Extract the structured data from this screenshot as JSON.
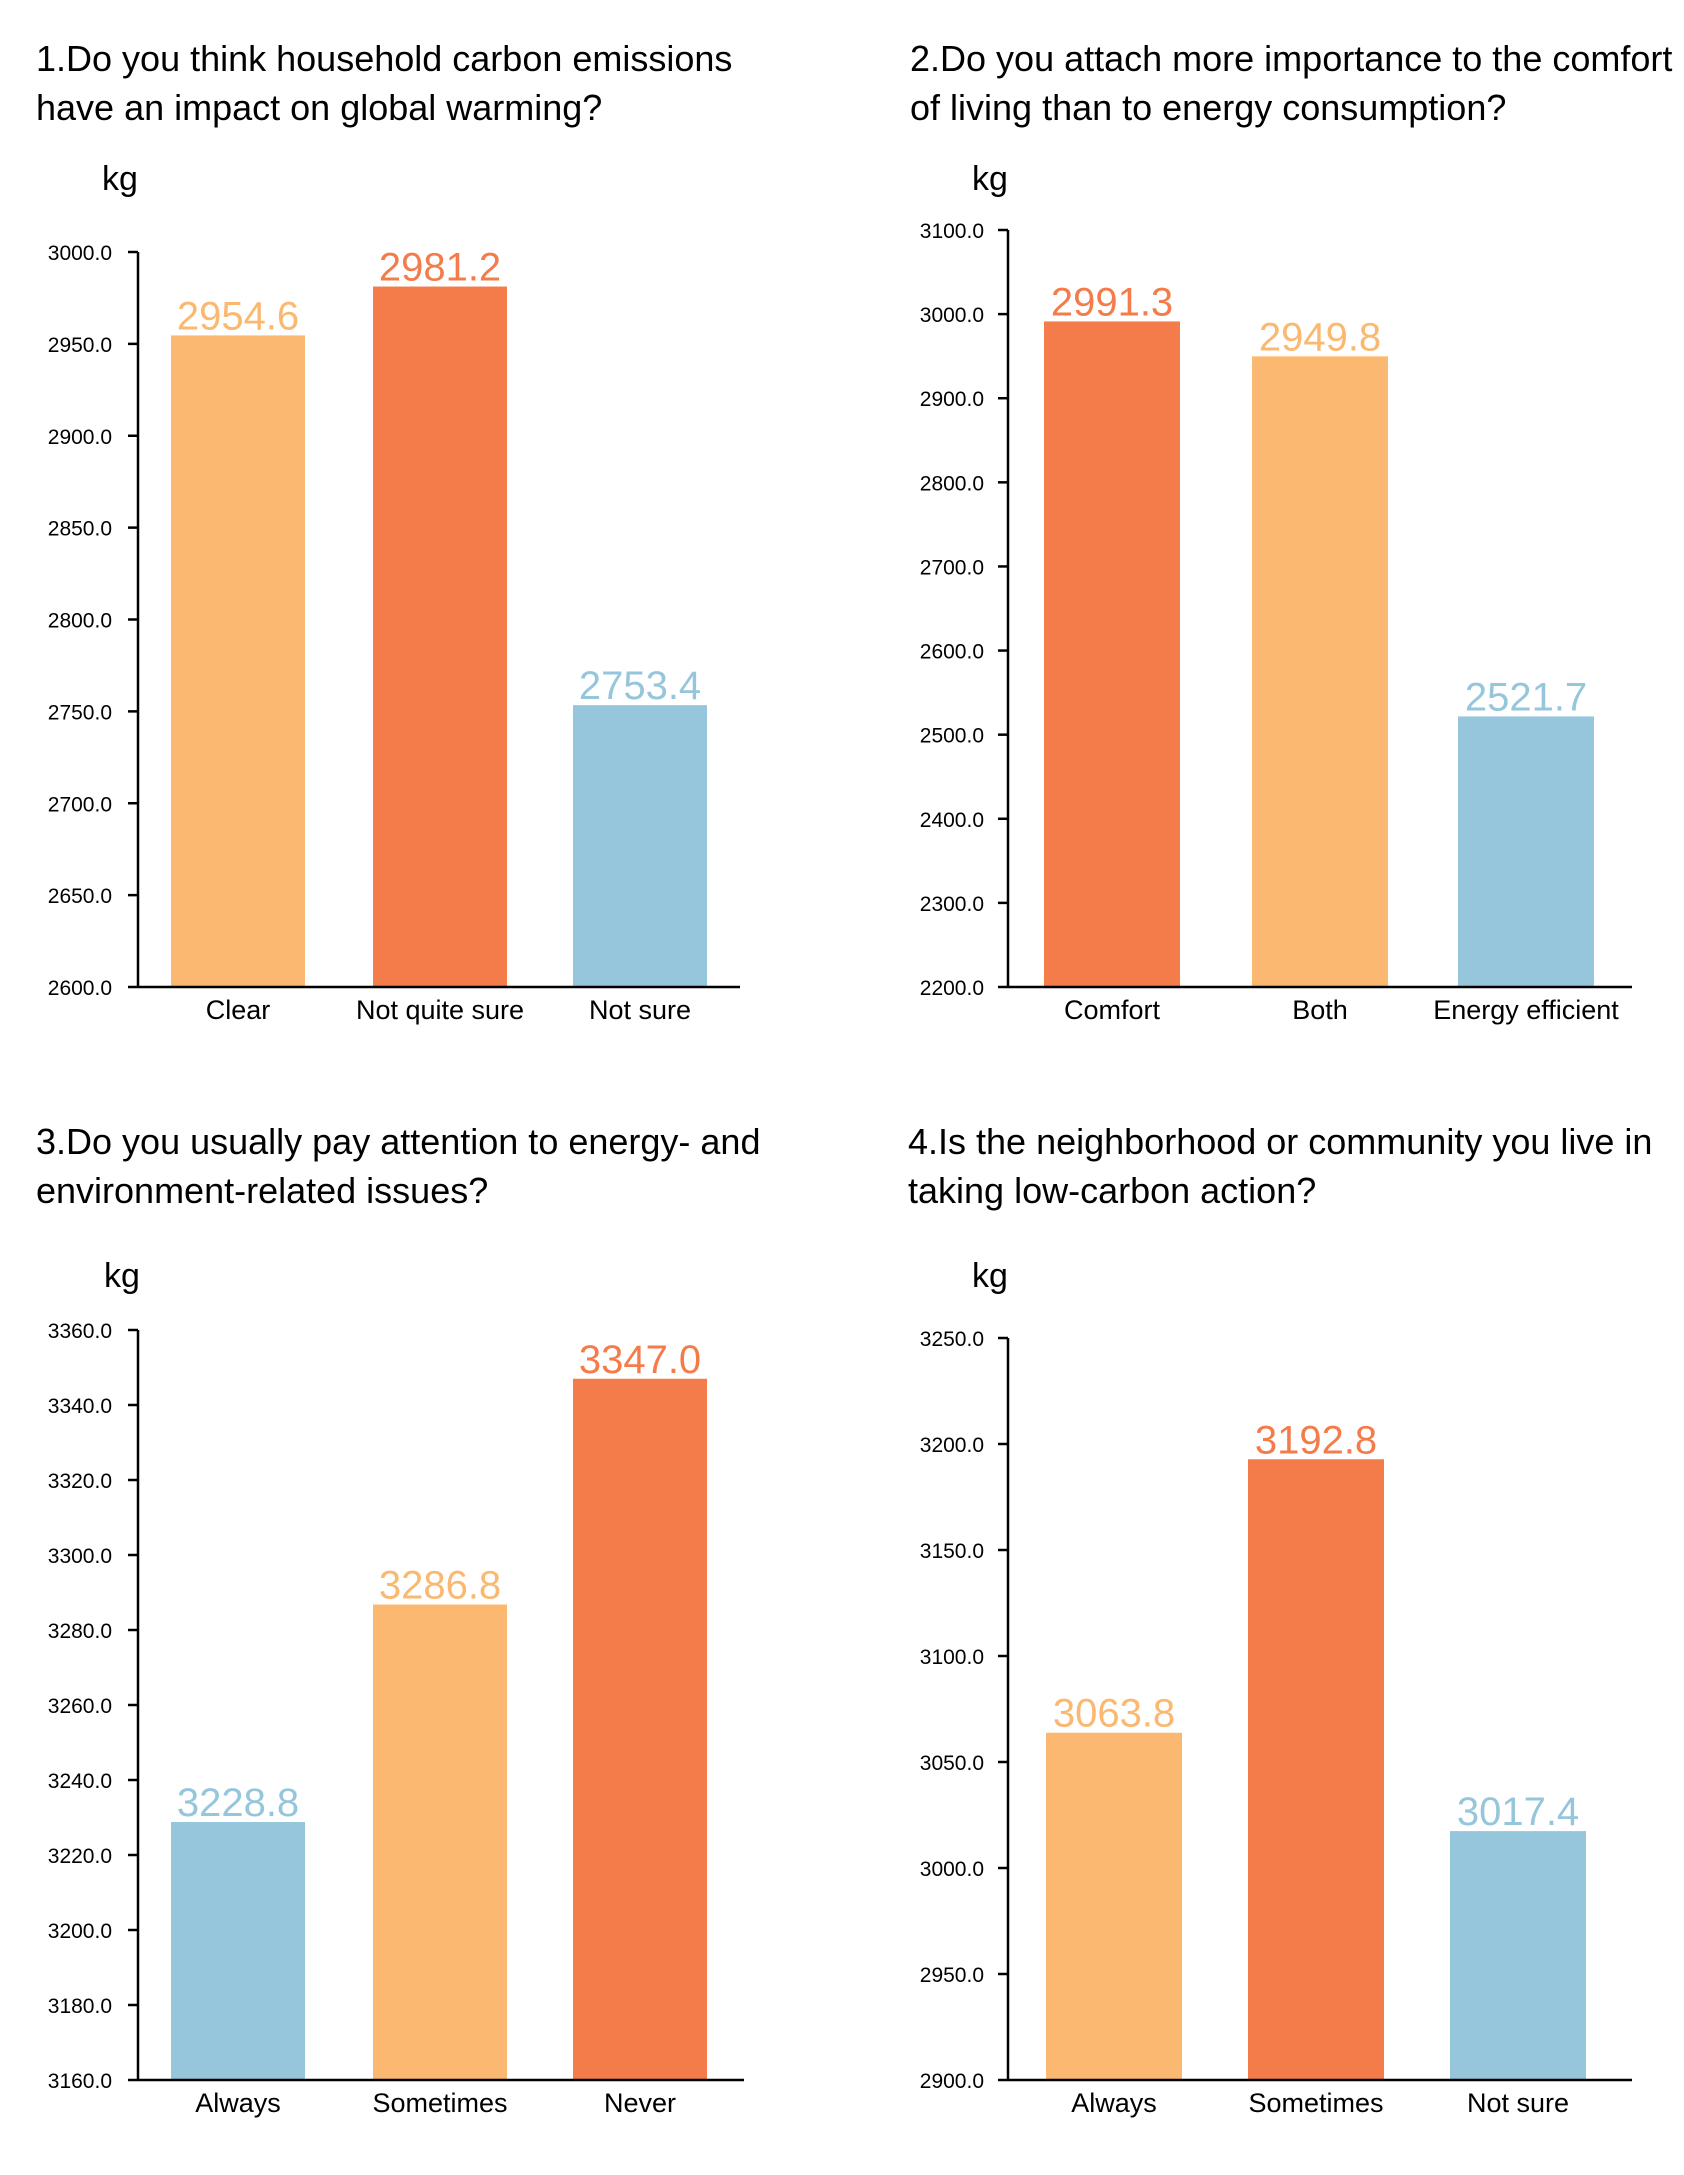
{
  "palette": {
    "light_orange": "#FBB870",
    "dark_orange": "#F47C4B",
    "light_blue": "#96C6DC",
    "axis": "#000000"
  },
  "chart_data": [
    {
      "type": "bar",
      "title_lines": [
        "1.Do you think household carbon emissions",
        "have an impact on global warming?"
      ],
      "ylabel": "kg",
      "xlabel": "",
      "categories": [
        "Clear",
        "Not quite sure",
        "Not sure"
      ],
      "values": [
        2954.6,
        2981.2,
        2753.4
      ],
      "value_labels": [
        "2954.6",
        "2981.2",
        "2753.4"
      ],
      "colors": [
        "#FBB870",
        "#F47C4B",
        "#96C6DC"
      ],
      "ylim": [
        2600,
        3000
      ],
      "yticks": [
        "2600.0",
        "2650.0",
        "2700.0",
        "2750.0",
        "2800.0",
        "2850.0",
        "2900.0",
        "2950.0",
        "3000.0"
      ],
      "grid": false
    },
    {
      "type": "bar",
      "title_lines": [
        "2.Do you attach more importance to the comfort",
        "of living than to energy consumption?"
      ],
      "ylabel": "kg",
      "xlabel": "",
      "categories": [
        "Comfort",
        "Both",
        "Energy efficient"
      ],
      "values": [
        2991.3,
        2949.8,
        2521.7
      ],
      "value_labels": [
        "2991.3",
        "2949.8",
        "2521.7"
      ],
      "colors": [
        "#F47C4B",
        "#FBB870",
        "#96C6DC"
      ],
      "ylim": [
        2200,
        3100
      ],
      "yticks": [
        "2200.0",
        "2300.0",
        "2400.0",
        "2500.0",
        "2600.0",
        "2700.0",
        "2800.0",
        "2900.0",
        "3000.0",
        "3100.0"
      ],
      "grid": false
    },
    {
      "type": "bar",
      "title_lines": [
        "3.Do you usually pay attention to energy- and",
        "environment-related issues?"
      ],
      "ylabel": "kg",
      "xlabel": "",
      "categories": [
        "Always",
        "Sometimes",
        "Never"
      ],
      "values": [
        3228.8,
        3286.8,
        3347.0
      ],
      "value_labels": [
        "3228.8",
        "3286.8",
        "3347.0"
      ],
      "colors": [
        "#96C6DC",
        "#FBB870",
        "#F47C4B"
      ],
      "ylim": [
        3160,
        3360
      ],
      "yticks": [
        "3160.0",
        "3180.0",
        "3200.0",
        "3220.0",
        "3240.0",
        "3260.0",
        "3280.0",
        "3300.0",
        "3320.0",
        "3340.0",
        "3360.0"
      ],
      "grid": false
    },
    {
      "type": "bar",
      "title_lines": [
        "4.Is the neighborhood or community you live in",
        "taking low-carbon action?"
      ],
      "ylabel": "kg",
      "xlabel": "",
      "categories": [
        "Always",
        "Sometimes",
        "Not sure"
      ],
      "values": [
        3063.8,
        3192.8,
        3017.4
      ],
      "value_labels": [
        "3063.8",
        "3192.8",
        "3017.4"
      ],
      "colors": [
        "#FBB870",
        "#F47C4B",
        "#96C6DC"
      ],
      "ylim": [
        2900,
        3250
      ],
      "yticks": [
        "2900.0",
        "2950.0",
        "3000.0",
        "3050.0",
        "3100.0",
        "3150.0",
        "3200.0",
        "3250.0"
      ],
      "grid": false
    }
  ]
}
